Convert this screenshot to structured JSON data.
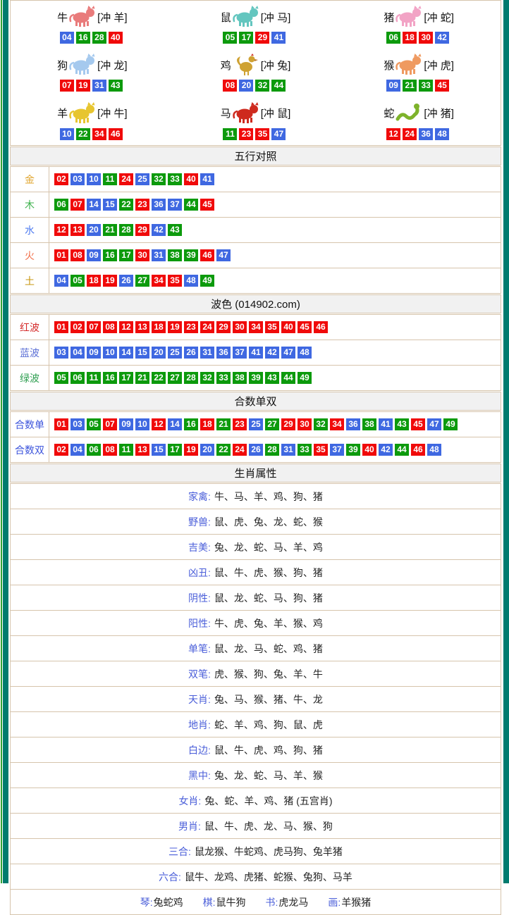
{
  "colors": {
    "accent_teal": "#007B6E",
    "table_border": "#D6C4AC",
    "header_bg": "#F1F1F1",
    "green_edge_line": "#2FA033",
    "attr_label_blue": "#4A5ED9",
    "attr_value": "#222222"
  },
  "ball_colors": {
    "red": "#F00A0A",
    "blue": "#3F68E1",
    "green": "#0C9A0C"
  },
  "ball_groups": {
    "red": [
      1,
      2,
      7,
      8,
      12,
      13,
      18,
      19,
      23,
      24,
      29,
      30,
      34,
      35,
      40,
      45,
      46
    ],
    "blue": [
      3,
      4,
      9,
      10,
      14,
      15,
      20,
      25,
      26,
      31,
      36,
      37,
      41,
      42,
      47,
      48
    ],
    "green": [
      5,
      6,
      11,
      16,
      17,
      21,
      22,
      27,
      28,
      32,
      33,
      38,
      39,
      43,
      44,
      49
    ]
  },
  "zodiac": {
    "cells": [
      {
        "name": "牛",
        "clash": "[冲 羊]",
        "icon": "ox-icon",
        "kind": "quadruped",
        "color": "#E97B7B",
        "numbers": [
          "04",
          "16",
          "28",
          "40"
        ]
      },
      {
        "name": "鼠",
        "clash": "[冲 马]",
        "icon": "rat-icon",
        "kind": "quadruped",
        "color": "#63C6BF",
        "numbers": [
          "05",
          "17",
          "29",
          "41"
        ]
      },
      {
        "name": "猪",
        "clash": "[冲 蛇]",
        "icon": "pig-icon",
        "kind": "quadruped",
        "color": "#F2A3C5",
        "numbers": [
          "06",
          "18",
          "30",
          "42"
        ]
      },
      {
        "name": "狗",
        "clash": "[冲 龙]",
        "icon": "dog-icon",
        "kind": "quadruped",
        "color": "#A5C9EE",
        "numbers": [
          "07",
          "19",
          "31",
          "43"
        ]
      },
      {
        "name": "鸡",
        "clash": "[冲 兔]",
        "icon": "rooster-icon",
        "kind": "bird",
        "color": "#CFA233",
        "numbers": [
          "08",
          "20",
          "32",
          "44"
        ]
      },
      {
        "name": "猴",
        "clash": "[冲 虎]",
        "icon": "monkey-icon",
        "kind": "quadruped",
        "color": "#EF9A60",
        "numbers": [
          "09",
          "21",
          "33",
          "45"
        ]
      },
      {
        "name": "羊",
        "clash": "[冲 牛]",
        "icon": "goat-icon",
        "kind": "quadruped",
        "color": "#E7C52F",
        "numbers": [
          "10",
          "22",
          "34",
          "46"
        ]
      },
      {
        "name": "马",
        "clash": "[冲 鼠]",
        "icon": "horse-icon",
        "kind": "quadruped",
        "color": "#CE2A1E",
        "numbers": [
          "11",
          "23",
          "35",
          "47"
        ]
      },
      {
        "name": "蛇",
        "clash": "[冲 猪]",
        "icon": "snake-icon",
        "kind": "snake",
        "color": "#7EB32B",
        "numbers": [
          "12",
          "24",
          "36",
          "48"
        ]
      }
    ]
  },
  "sections": [
    {
      "title": "五行对照",
      "rows": [
        {
          "label": "金",
          "label_color": "#E0A52E",
          "numbers": [
            "02",
            "03",
            "10",
            "11",
            "24",
            "25",
            "32",
            "33",
            "40",
            "41"
          ]
        },
        {
          "label": "木",
          "label_color": "#3BB14B",
          "numbers": [
            "06",
            "07",
            "14",
            "15",
            "22",
            "23",
            "36",
            "37",
            "44",
            "45"
          ]
        },
        {
          "label": "水",
          "label_color": "#4E7BF0",
          "numbers": [
            "12",
            "13",
            "20",
            "21",
            "28",
            "29",
            "42",
            "43"
          ]
        },
        {
          "label": "火",
          "label_color": "#F2714C",
          "numbers": [
            "01",
            "08",
            "09",
            "16",
            "17",
            "30",
            "31",
            "38",
            "39",
            "46",
            "47"
          ]
        },
        {
          "label": "土",
          "label_color": "#C7940D",
          "numbers": [
            "04",
            "05",
            "18",
            "19",
            "26",
            "27",
            "34",
            "35",
            "48",
            "49"
          ]
        }
      ]
    },
    {
      "title": "波色 (014902.com)",
      "rows": [
        {
          "label": "红波",
          "label_color": "#D42A2A",
          "numbers": [
            "01",
            "02",
            "07",
            "08",
            "12",
            "13",
            "18",
            "19",
            "23",
            "24",
            "29",
            "30",
            "34",
            "35",
            "40",
            "45",
            "46"
          ]
        },
        {
          "label": "蓝波",
          "label_color": "#5B6FD6",
          "numbers": [
            "03",
            "04",
            "09",
            "10",
            "14",
            "15",
            "20",
            "25",
            "26",
            "31",
            "36",
            "37",
            "41",
            "42",
            "47",
            "48"
          ]
        },
        {
          "label": "绿波",
          "label_color": "#2E9E50",
          "numbers": [
            "05",
            "06",
            "11",
            "16",
            "17",
            "21",
            "22",
            "27",
            "28",
            "32",
            "33",
            "38",
            "39",
            "43",
            "44",
            "49"
          ]
        }
      ]
    },
    {
      "title": "合数单双",
      "rows": [
        {
          "label": "合数单",
          "label_color": "#3D55DC",
          "numbers": [
            "01",
            "03",
            "05",
            "07",
            "09",
            "10",
            "12",
            "14",
            "16",
            "18",
            "21",
            "23",
            "25",
            "27",
            "29",
            "30",
            "32",
            "34",
            "36",
            "38",
            "41",
            "43",
            "45",
            "47",
            "49"
          ]
        },
        {
          "label": "合数双",
          "label_color": "#3D55DC",
          "numbers": [
            "02",
            "04",
            "06",
            "08",
            "11",
            "13",
            "15",
            "17",
            "19",
            "20",
            "22",
            "24",
            "26",
            "28",
            "31",
            "33",
            "35",
            "37",
            "39",
            "40",
            "42",
            "44",
            "46",
            "48"
          ]
        }
      ]
    }
  ],
  "attributes": {
    "title": "生肖属性",
    "rows": [
      {
        "label": "家禽:",
        "value": "牛、马、羊、鸡、狗、猪"
      },
      {
        "label": "野兽:",
        "value": "鼠、虎、兔、龙、蛇、猴"
      },
      {
        "label": "吉美:",
        "value": "兔、龙、蛇、马、羊、鸡"
      },
      {
        "label": "凶丑:",
        "value": "鼠、牛、虎、猴、狗、猪"
      },
      {
        "label": "阴性:",
        "value": "鼠、龙、蛇、马、狗、猪"
      },
      {
        "label": "阳性:",
        "value": "牛、虎、兔、羊、猴、鸡"
      },
      {
        "label": "单笔:",
        "value": "鼠、龙、马、蛇、鸡、猪"
      },
      {
        "label": "双笔:",
        "value": "虎、猴、狗、兔、羊、牛"
      },
      {
        "label": "天肖:",
        "value": "兔、马、猴、猪、牛、龙"
      },
      {
        "label": "地肖:",
        "value": "蛇、羊、鸡、狗、鼠、虎"
      },
      {
        "label": "白边:",
        "value": "鼠、牛、虎、鸡、狗、猪"
      },
      {
        "label": "黑中:",
        "value": "兔、龙、蛇、马、羊、猴"
      },
      {
        "label": "女肖:",
        "value": "兔、蛇、羊、鸡、猪 (五宫肖)"
      },
      {
        "label": "男肖:",
        "value": "鼠、牛、虎、龙、马、猴、狗"
      },
      {
        "label": "三合:",
        "value": "鼠龙猴、牛蛇鸡、虎马狗、兔羊猪"
      },
      {
        "label": "六合:",
        "value": "鼠牛、龙鸡、虎猪、蛇猴、兔狗、马羊"
      }
    ],
    "footer": [
      {
        "label": "琴:",
        "value": "兔蛇鸡"
      },
      {
        "label": "棋:",
        "value": "鼠牛狗"
      },
      {
        "label": "书:",
        "value": "虎龙马"
      },
      {
        "label": "画:",
        "value": "羊猴猪"
      }
    ]
  }
}
